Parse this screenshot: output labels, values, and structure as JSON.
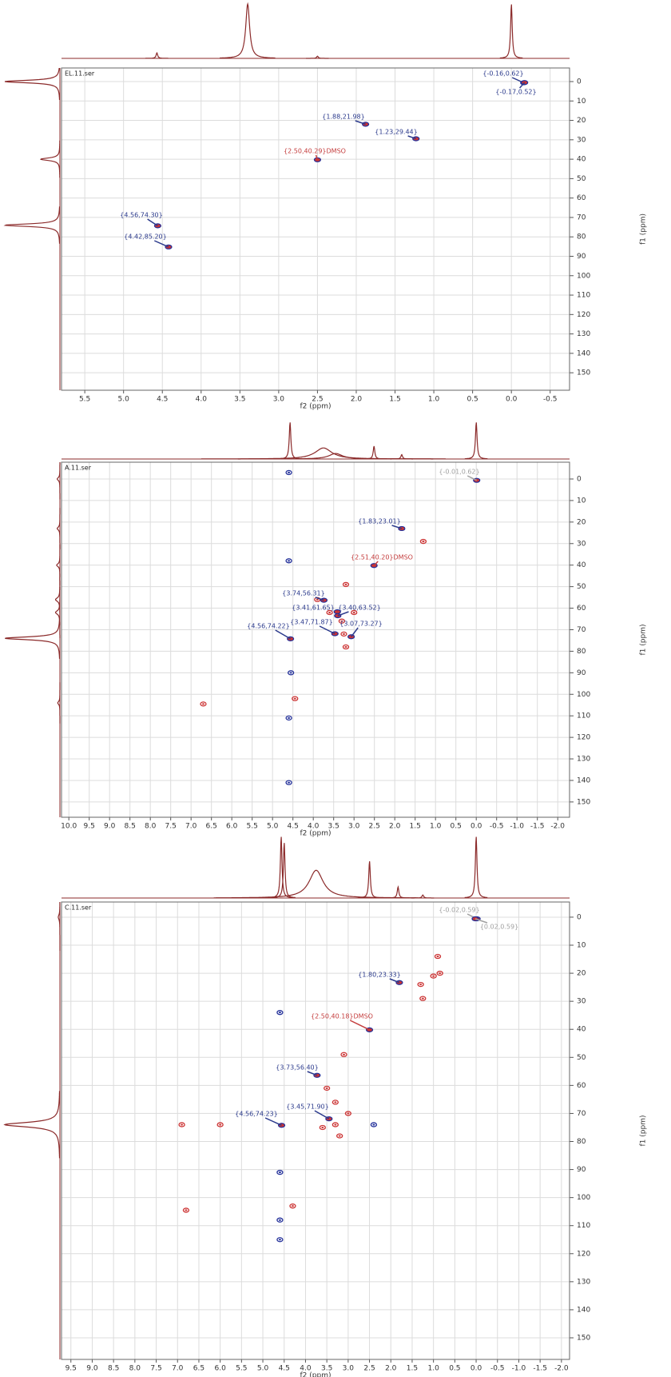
{
  "chart_data": [
    {
      "type": "hsqc",
      "title": "EL.11.ser",
      "xlabel": "f2 (ppm)",
      "ylabel": "f1 (ppm)",
      "grid": true,
      "xlim": [
        5.8,
        -0.75
      ],
      "ylim": [
        159,
        -7
      ],
      "xticks": [
        5.5,
        {
          "value": 5,
          "label": "5.0"
        },
        4.5,
        {
          "value": 4,
          "label": "4.0"
        },
        3.5,
        {
          "value": 3,
          "label": "3.0"
        },
        2.5,
        {
          "value": 2,
          "label": "2.0"
        },
        1.5,
        {
          "value": 1,
          "label": "1.0"
        },
        0.5,
        {
          "value": 0,
          "label": "0.0"
        },
        -0.5
      ],
      "yticks": [
        0,
        10,
        20,
        30,
        40,
        50,
        60,
        70,
        80,
        90,
        100,
        110,
        120,
        130,
        140,
        150
      ],
      "projection_color": "#8b2a2a",
      "projection_f2": {
        "x": [
          4.57,
          3.4,
          2.5,
          0.0
        ],
        "heights": [
          10,
          100,
          4,
          100
        ],
        "widths": [
          0.01,
          0.03,
          0.01,
          0.01
        ]
      },
      "projection_f1": {
        "x": [
          0,
          40,
          74
        ],
        "heights": [
          100,
          35,
          100
        ],
        "widths": [
          0.8,
          0.8,
          0.8
        ]
      },
      "annotations": [
        {
          "text": "{-0.16,0.62}",
          "x": -0.16,
          "y": 0.62,
          "color": "#2b3a8c"
        },
        {
          "text": "{-0.17,0.52}",
          "x": -0.17,
          "y": 0.52,
          "color": "#2b3a8c"
        },
        {
          "text": "{1.88,21.98}",
          "x": 1.88,
          "y": 21.98,
          "color": "#2b3a8c"
        },
        {
          "text": "{1.23,29.44}",
          "x": 1.23,
          "y": 29.44,
          "color": "#2b3a8c"
        },
        {
          "text": "{2.50,40.29}DMSO",
          "x": 2.5,
          "y": 40.29,
          "color": "#c43c3c"
        },
        {
          "text": "{4.56,74.30}",
          "x": 4.56,
          "y": 74.3,
          "color": "#2b3a8c"
        },
        {
          "text": "{4.42,85.20}",
          "x": 4.42,
          "y": 85.2,
          "color": "#2b3a8c"
        }
      ]
    },
    {
      "type": "hsqc",
      "title": "A.11.ser",
      "xlabel": "f2 (ppm)",
      "ylabel": "f1 (ppm)",
      "grid": true,
      "xlim": [
        10.18,
        -2.29
      ],
      "ylim": [
        157.1,
        -7.8
      ],
      "xticks": [
        {
          "value": 10,
          "label": "10.0"
        },
        9.5,
        {
          "value": 9,
          "label": "9.0"
        },
        8.5,
        {
          "value": 8,
          "label": "8.0"
        },
        7.5,
        {
          "value": 7,
          "label": "7.0"
        },
        6.5,
        {
          "value": 6,
          "label": "6.0"
        },
        5.5,
        {
          "value": 5,
          "label": "5.0"
        },
        4.5,
        {
          "value": 4,
          "label": "4.0"
        },
        3.5,
        {
          "value": 3,
          "label": "3.0"
        },
        2.5,
        {
          "value": 2,
          "label": "2.0"
        },
        1.5,
        {
          "value": 1,
          "label": "1.0"
        },
        0.5,
        {
          "value": 0,
          "label": "0.0"
        },
        -0.5,
        {
          "value": -1,
          "label": "-1.0"
        },
        -1.5,
        {
          "value": -2,
          "label": "-2.0"
        }
      ],
      "yticks": [
        0,
        10,
        20,
        30,
        40,
        50,
        60,
        70,
        80,
        90,
        100,
        110,
        120,
        130,
        140,
        150
      ],
      "projection_color": "#8b2a2a",
      "projection_f2": {
        "x": [
          4.57,
          3.75,
          3.45,
          2.51,
          1.83,
          0.0
        ],
        "heights": [
          100,
          30,
          15,
          35,
          12,
          100
        ],
        "widths": [
          0.01,
          0.25,
          0.2,
          0.01,
          0.02,
          0.01
        ]
      },
      "projection_f1": {
        "x": [
          74,
          56,
          62,
          40,
          23,
          0,
          104
        ],
        "heights": [
          100,
          8,
          8,
          6,
          5,
          5,
          4
        ],
        "widths": [
          0.8,
          1,
          1,
          0.8,
          0.8,
          0.8,
          0.8
        ]
      },
      "annotations": [
        {
          "text": "{-0.01,0.62}",
          "x": -0.01,
          "y": 0.62,
          "color": "#a0a0a0"
        },
        {
          "text": "{1.83,23.01}",
          "x": 1.83,
          "y": 23.01,
          "color": "#2b3a8c"
        },
        {
          "text": "{2.51,40.20}DMSO",
          "x": 2.51,
          "y": 40.2,
          "color": "#c43c3c"
        },
        {
          "text": "{3.74,56.31}",
          "x": 3.74,
          "y": 56.31,
          "color": "#2b3a8c"
        },
        {
          "text": "{3.41,61.65}",
          "x": 3.41,
          "y": 61.65,
          "color": "#2b3a8c"
        },
        {
          "text": "{3.40,63.52}",
          "x": 3.4,
          "y": 63.52,
          "color": "#2b3a8c"
        },
        {
          "text": "{3.47,71.87}",
          "x": 3.47,
          "y": 71.87,
          "color": "#2b3a8c"
        },
        {
          "text": "{3.07,73.27}",
          "x": 3.07,
          "y": 73.27,
          "color": "#2b3a8c"
        },
        {
          "text": "{4.56,74.22}",
          "x": 4.56,
          "y": 74.22,
          "color": "#2b3a8c"
        }
      ],
      "positive_peaks": {
        "color": "#cc3333",
        "x": [
          1.3,
          3.2,
          3.3,
          3.0,
          3.2,
          3.25,
          4.45,
          6.7,
          3.6,
          3.9
        ],
        "y": [
          29,
          49,
          66,
          62,
          78,
          72,
          102,
          104.5,
          62,
          56
        ]
      },
      "negative_peaks": {
        "color": "#23309a",
        "x": [
          4.6,
          4.6,
          4.6,
          4.6,
          4.55
        ],
        "y": [
          38,
          -3,
          111,
          141,
          90
        ]
      }
    },
    {
      "type": "hsqc",
      "title": "C.11.ser",
      "xlabel": "f2 (ppm)",
      "ylabel": "f1 (ppm)",
      "grid": true,
      "xlim": [
        9.72,
        -2.19
      ],
      "ylim": [
        157.7,
        -5.4
      ],
      "xticks": [
        9.5,
        {
          "value": 9,
          "label": "9.0"
        },
        8.5,
        {
          "value": 8,
          "label": "8.0"
        },
        7.5,
        {
          "value": 7,
          "label": "7.0"
        },
        6.5,
        {
          "value": 6,
          "label": "6.0"
        },
        5.5,
        {
          "value": 5,
          "label": "5.0"
        },
        4.5,
        {
          "value": 4,
          "label": "4.0"
        },
        3.5,
        {
          "value": 3,
          "label": "3.0"
        },
        2.5,
        {
          "value": 2,
          "label": "2.0"
        },
        1.5,
        {
          "value": 1,
          "label": "1.0"
        },
        0.5,
        {
          "value": 0,
          "label": "0.0"
        },
        -0.5,
        {
          "value": -1,
          "label": "-1.0"
        },
        -1.5,
        {
          "value": -2,
          "label": "-2.0"
        }
      ],
      "yticks": [
        0,
        10,
        20,
        30,
        40,
        50,
        60,
        70,
        80,
        90,
        100,
        110,
        120,
        130,
        140,
        150
      ],
      "projection_color": "#8b2a2a",
      "projection_f2": {
        "x": [
          4.57,
          4.5,
          3.75,
          2.5,
          1.83,
          1.25,
          0.0
        ],
        "heights": [
          100,
          90,
          45,
          60,
          18,
          5,
          100
        ],
        "widths": [
          0.01,
          0.01,
          0.2,
          0.01,
          0.02,
          0.02,
          0.01
        ]
      },
      "projection_f1": {
        "x": [
          74,
          0
        ],
        "heights": [
          100,
          3
        ],
        "widths": [
          1,
          1
        ]
      },
      "annotations": [
        {
          "text": "{-0.02,0.59}",
          "x": -0.02,
          "y": 0.59,
          "color": "#a0a0a0"
        },
        {
          "text": "{0.02,0.59}",
          "x": 0.02,
          "y": 0.59,
          "color": "#a0a0a0"
        },
        {
          "text": "{1.80,23.33}",
          "x": 1.8,
          "y": 23.33,
          "color": "#2b3a8c"
        },
        {
          "text": "{2.50,40.18}DMSO",
          "x": 2.5,
          "y": 40.18,
          "color": "#c43c3c"
        },
        {
          "text": "{3.73,56.40}",
          "x": 3.73,
          "y": 56.4,
          "color": "#2b3a8c"
        },
        {
          "text": "{3.45,71.90}",
          "x": 3.45,
          "y": 71.9,
          "color": "#2b3a8c"
        },
        {
          "text": "{4.56,74.23}",
          "x": 4.56,
          "y": 74.23,
          "color": "#2b3a8c"
        }
      ],
      "positive_peaks": {
        "color": "#cc3333",
        "x": [
          1.25,
          1.0,
          0.9,
          0.85,
          3.1,
          3.5,
          3.3,
          3.0,
          3.3,
          3.6,
          3.2,
          4.3,
          6.8,
          6.0,
          6.9,
          1.3
        ],
        "y": [
          29,
          21,
          14,
          20,
          49,
          61,
          66,
          70,
          74,
          75,
          78,
          103,
          104.5,
          74,
          74,
          24
        ]
      },
      "negative_peaks": {
        "color": "#23309a",
        "x": [
          2.4,
          4.6,
          4.6,
          4.6,
          4.6
        ],
        "y": [
          74,
          34,
          91,
          108,
          115
        ]
      }
    }
  ]
}
